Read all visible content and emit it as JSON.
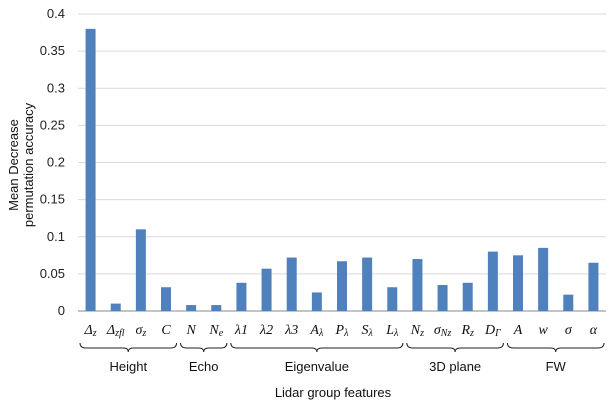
{
  "chart_data": {
    "type": "bar",
    "ylabel_lines": [
      "Mean Decrease",
      "permutation accuracy"
    ],
    "xlabel": "Lidar group features",
    "ylim": [
      0,
      0.4
    ],
    "yticks": [
      "0",
      "0.05",
      "0.1",
      "0.15",
      "0.2",
      "0.25",
      "0.3",
      "0.35",
      "0.4"
    ],
    "grid": "horizontal",
    "color": "#4f81bd",
    "categories": [
      "Δz",
      "Δzfl",
      "σz",
      "C",
      "N",
      "Ne",
      "λ1",
      "λ2",
      "λ3",
      "Aλ",
      "Pλ",
      "Sλ",
      "Lλ",
      "Nz",
      "σNz",
      "Rz",
      "DΓ",
      "A",
      "w",
      "σ",
      "α"
    ],
    "values": [
      0.38,
      0.01,
      0.11,
      0.032,
      0.008,
      0.008,
      0.038,
      0.057,
      0.072,
      0.025,
      0.067,
      0.072,
      0.032,
      0.07,
      0.035,
      0.038,
      0.08,
      0.075,
      0.085,
      0.022,
      0.065
    ],
    "groups": [
      {
        "name": "Height",
        "start": 0,
        "end": 3
      },
      {
        "name": "Echo",
        "start": 4,
        "end": 5
      },
      {
        "name": "Eigenvalue",
        "start": 6,
        "end": 12
      },
      {
        "name": "3D plane",
        "start": 13,
        "end": 16
      },
      {
        "name": "FW",
        "start": 17,
        "end": 20
      }
    ]
  }
}
